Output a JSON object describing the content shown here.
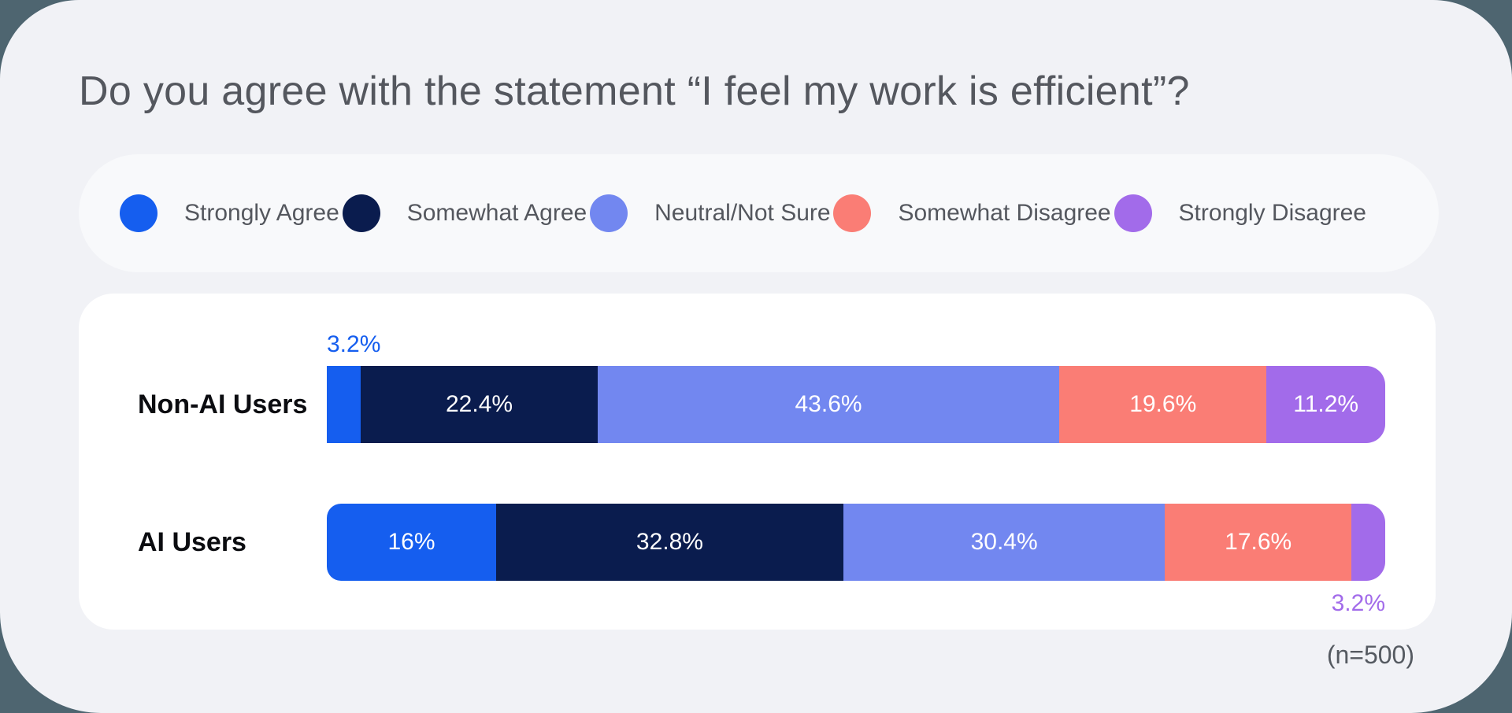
{
  "title": "Do you agree with the statement “I feel my work is efficient”?",
  "sample_note": "(n=500)",
  "colors": {
    "page_background": "#4E6570",
    "card_background": "#F1F2F6",
    "legend_background": "#F8F9FB",
    "chart_card_background": "#FFFFFF",
    "title_text": "#54575E",
    "row_label_text": "#0B0C10",
    "note_text": "#555A61"
  },
  "chart_data": {
    "type": "bar",
    "variant": "horizontal-stacked",
    "unit": "%",
    "title": "Do you agree with the statement “I feel my work is efficient”?",
    "categories": [
      "Non-AI Users",
      "AI Users"
    ],
    "series": [
      {
        "name": "Strongly Agree",
        "color": "#155EEF",
        "values": [
          3.2,
          16
        ],
        "labels": [
          "3.2%",
          "16%"
        ],
        "label_placement": [
          "above-start",
          "inside"
        ]
      },
      {
        "name": "Somewhat Agree",
        "color": "#0A1C4E",
        "values": [
          22.4,
          32.8
        ],
        "labels": [
          "22.4%",
          "32.8%"
        ],
        "label_placement": [
          "inside",
          "inside"
        ]
      },
      {
        "name": "Neutral/Not Sure",
        "color": "#7287F0",
        "values": [
          43.6,
          30.4
        ],
        "labels": [
          "43.6%",
          "30.4%"
        ],
        "label_placement": [
          "inside",
          "inside"
        ]
      },
      {
        "name": "Somewhat Disagree",
        "color": "#FA7D75",
        "values": [
          19.6,
          17.6
        ],
        "labels": [
          "19.6%",
          "17.6%"
        ],
        "label_placement": [
          "inside",
          "inside"
        ]
      },
      {
        "name": "Strongly Disagree",
        "color": "#A26BEA",
        "values": [
          11.2,
          3.2
        ],
        "labels": [
          "11.2%",
          "3.2%"
        ],
        "label_placement": [
          "inside",
          "below-end"
        ]
      }
    ],
    "xlim": [
      0,
      100
    ],
    "grid": false,
    "legend_position": "top"
  }
}
